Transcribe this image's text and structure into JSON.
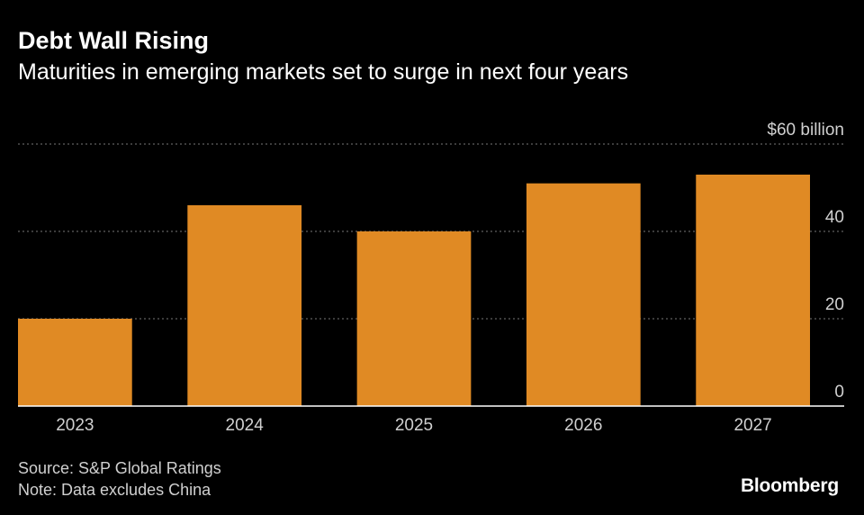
{
  "header": {
    "title": "Debt Wall Rising",
    "subtitle": "Maturities in emerging markets set to surge in next four years"
  },
  "chart_data": {
    "type": "bar",
    "categories": [
      "2023",
      "2024",
      "2025",
      "2026",
      "2027"
    ],
    "values": [
      20,
      46,
      40,
      51,
      53
    ],
    "ylim": [
      0,
      60
    ],
    "yticks": [
      0,
      20,
      40,
      60
    ],
    "ytick_labels": [
      "0",
      "20",
      "40",
      "$60 billion"
    ],
    "grid": true,
    "bar_color": "#e08a24",
    "gridline_color": "#777777"
  },
  "footer": {
    "source": "Source: S&P Global Ratings",
    "note": "Note: Data excludes China",
    "brand": "Bloomberg"
  }
}
